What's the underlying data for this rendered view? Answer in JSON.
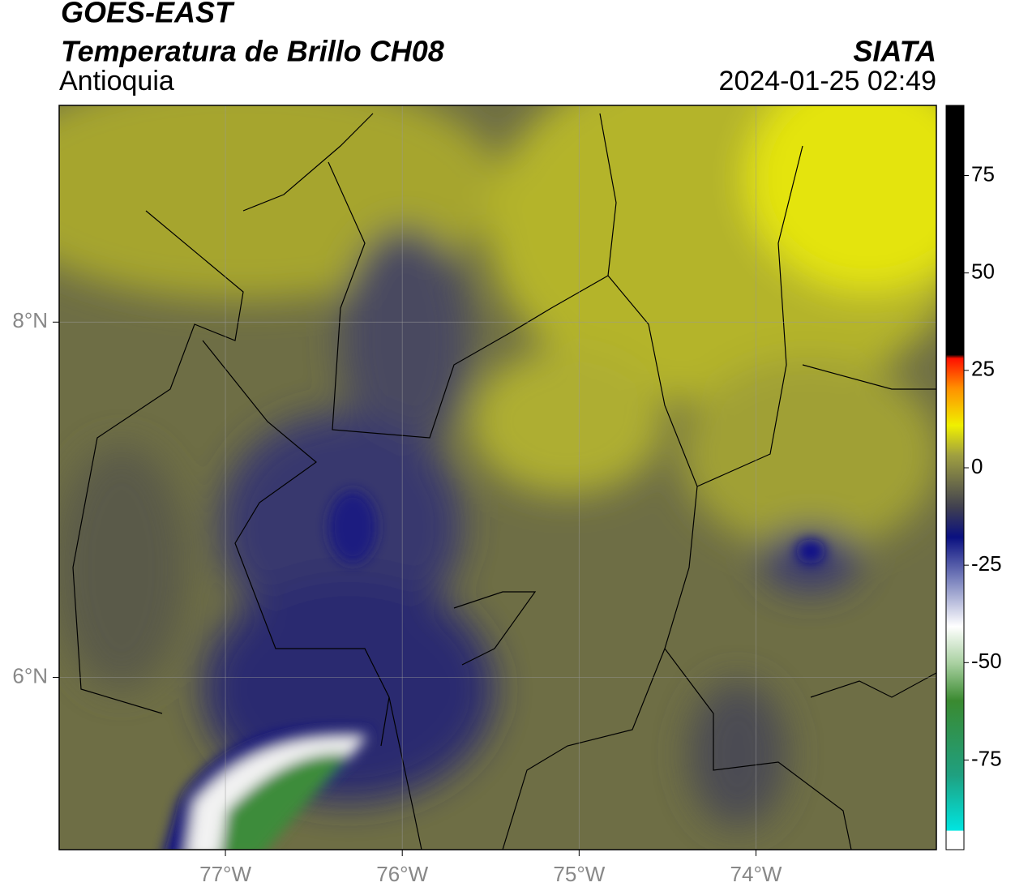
{
  "header": {
    "title": "GOES-EAST",
    "subtitle": "Temperatura de Brillo CH08",
    "region": "Antioquia",
    "source": "SIATA",
    "timestamp": "2024-01-25 02:49"
  },
  "map": {
    "xlim": [
      -77.94,
      -72.98
    ],
    "ylim": [
      5.03,
      9.22
    ],
    "xticks": [
      {
        "value": -77,
        "label": "77°W"
      },
      {
        "value": -76,
        "label": "76°W"
      },
      {
        "value": -75,
        "label": "75°W"
      },
      {
        "value": -74,
        "label": "74°W"
      }
    ],
    "yticks": [
      {
        "value": 8,
        "label": "8°N"
      },
      {
        "value": 6,
        "label": "6°N"
      }
    ]
  },
  "colorbar": {
    "lim": [
      -98,
      93
    ],
    "ticks": [
      75,
      50,
      25,
      0,
      -25,
      -50,
      -75
    ]
  }
}
